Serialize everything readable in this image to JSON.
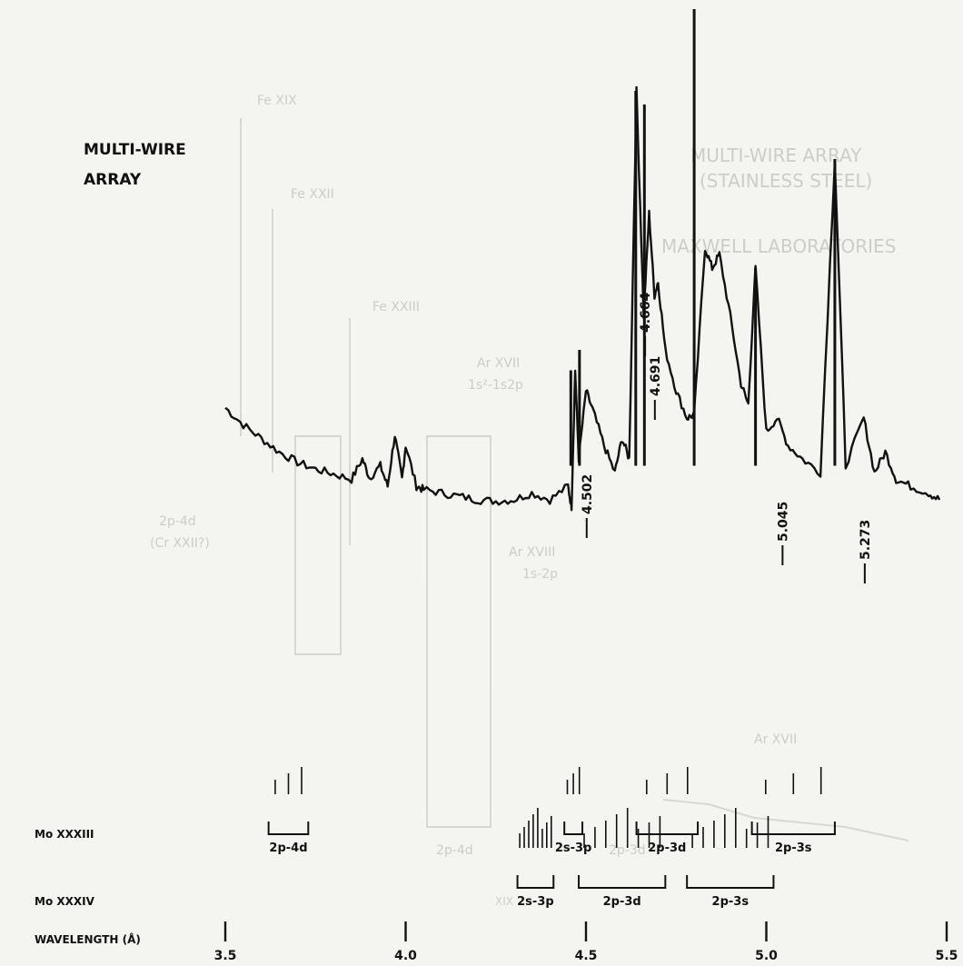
{
  "chart_data": {
    "type": "line",
    "title": "MULTI-WIRE\nARRAY",
    "title_lines": [
      "MULTI-WIRE",
      "ARRAY"
    ],
    "xlabel": "WAVELENGTH (Å)",
    "ylabel": "",
    "xlim": [
      3.5,
      5.5
    ],
    "x_ticks": [
      3.5,
      4.0,
      4.5,
      5.0,
      5.5
    ],
    "x_tick_labels": [
      "3.5",
      "4.0",
      "4.5",
      "5.0",
      "5.5"
    ],
    "ylim": [
      0,
      1
    ],
    "grid": false,
    "line_color": "#111111",
    "spectrum_points": [
      [
        3.5,
        0.415
      ],
      [
        3.55,
        0.39
      ],
      [
        3.6,
        0.37
      ],
      [
        3.65,
        0.35
      ],
      [
        3.7,
        0.335
      ],
      [
        3.75,
        0.325
      ],
      [
        3.8,
        0.318
      ],
      [
        3.85,
        0.31
      ],
      [
        3.88,
        0.34
      ],
      [
        3.9,
        0.312
      ],
      [
        3.93,
        0.33
      ],
      [
        3.95,
        0.3
      ],
      [
        3.97,
        0.375
      ],
      [
        3.99,
        0.31
      ],
      [
        4.0,
        0.36
      ],
      [
        4.03,
        0.3
      ],
      [
        4.05,
        0.295
      ],
      [
        4.1,
        0.29
      ],
      [
        4.15,
        0.285
      ],
      [
        4.2,
        0.28
      ],
      [
        4.25,
        0.278
      ],
      [
        4.3,
        0.28
      ],
      [
        4.35,
        0.29
      ],
      [
        4.4,
        0.28
      ],
      [
        4.45,
        0.3
      ],
      [
        4.46,
        0.27
      ],
      [
        4.47,
        0.47
      ],
      [
        4.48,
        0.34
      ],
      [
        4.5,
        0.44
      ],
      [
        4.52,
        0.41
      ],
      [
        4.55,
        0.36
      ],
      [
        4.58,
        0.32
      ],
      [
        4.6,
        0.37
      ],
      [
        4.62,
        0.34
      ],
      [
        4.64,
        0.88
      ],
      [
        4.66,
        0.55
      ],
      [
        4.675,
        0.7
      ],
      [
        4.69,
        0.58
      ],
      [
        4.7,
        0.6
      ],
      [
        4.72,
        0.5
      ],
      [
        4.75,
        0.44
      ],
      [
        4.78,
        0.4
      ],
      [
        4.8,
        0.405
      ],
      [
        4.83,
        0.65
      ],
      [
        4.85,
        0.62
      ],
      [
        4.87,
        0.64
      ],
      [
        4.9,
        0.55
      ],
      [
        4.93,
        0.45
      ],
      [
        4.95,
        0.42
      ],
      [
        4.97,
        0.62
      ],
      [
        5.0,
        0.38
      ],
      [
        5.03,
        0.4
      ],
      [
        5.06,
        0.36
      ],
      [
        5.1,
        0.34
      ],
      [
        5.15,
        0.32
      ],
      [
        5.19,
        0.78
      ],
      [
        5.22,
        0.33
      ],
      [
        5.27,
        0.4
      ],
      [
        5.3,
        0.32
      ],
      [
        5.33,
        0.35
      ],
      [
        5.36,
        0.31
      ],
      [
        5.4,
        0.3
      ],
      [
        5.45,
        0.29
      ],
      [
        5.48,
        0.28
      ]
    ],
    "spikes": [
      {
        "x": 4.458,
        "y": 0.47
      },
      {
        "x": 4.482,
        "y": 0.5
      },
      {
        "x": 4.638,
        "y": 0.88
      },
      {
        "x": 4.662,
        "y": 0.86
      },
      {
        "x": 4.8,
        "y": 1.0
      },
      {
        "x": 4.97,
        "y": 0.62
      },
      {
        "x": 5.19,
        "y": 0.78
      }
    ],
    "annotations": [
      {
        "label": "4.502",
        "x": 4.502
      },
      {
        "label": "4.664",
        "x": 4.664
      },
      {
        "label": "4.691",
        "x": 4.691
      },
      {
        "label": "5.045",
        "x": 5.045
      },
      {
        "label": "5.273",
        "x": 5.273
      }
    ],
    "ion_series": [
      {
        "name": "Mo XXXIII",
        "groups": [
          {
            "label": "2p-4d",
            "x_range": [
              3.62,
              3.73
            ]
          },
          {
            "label": "2s-3p",
            "x_range": [
              4.44,
              4.49
            ]
          },
          {
            "label": "2p-3d",
            "x_range": [
              4.64,
              4.81
            ]
          },
          {
            "label": "2p-3s",
            "x_range": [
              4.96,
              5.19
            ]
          }
        ]
      },
      {
        "name": "Mo XXXIV",
        "groups": [
          {
            "label": "2s-3p",
            "x_range": [
              4.31,
              4.41
            ]
          },
          {
            "label": "2p-3d",
            "x_range": [
              4.48,
              4.72
            ]
          },
          {
            "label": "2p-3s",
            "x_range": [
              4.78,
              5.02
            ]
          }
        ]
      }
    ]
  },
  "figure": {
    "wavelength_axis_label": "WAVELENGTH (Å)",
    "ghost_text_lines": [
      "MULTI-WIRE ARRAY",
      "(STAINLESS STEEL)",
      "MAXWELL LABORATORIES"
    ],
    "ghost_labels": [
      "Fe XIX",
      "Fe XXII",
      "Fe XXIII",
      "Ar XVII",
      "1s²-1s2p",
      "2p-4d",
      "(Cr XXII?)",
      "Ar XVIII",
      "1s-2p",
      "2p-4d",
      "2p-3d",
      "XIX",
      "Ar XVII"
    ]
  }
}
